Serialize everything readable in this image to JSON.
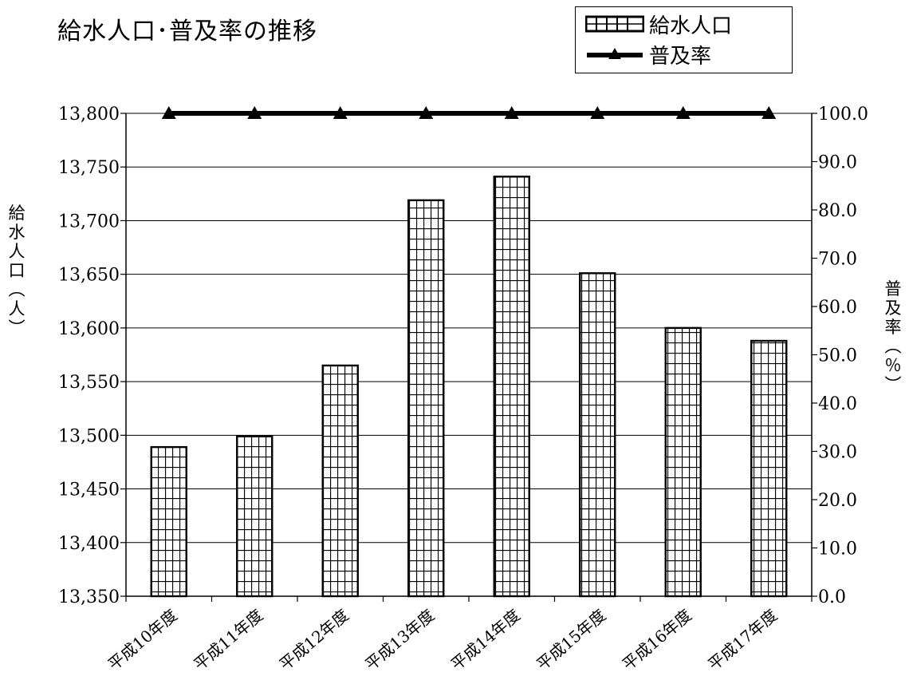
{
  "chart_data": {
    "type": "bar",
    "title": "給水人口･普及率の推移",
    "categories": [
      "平成10年度",
      "平成11年度",
      "平成12年度",
      "平成13年度",
      "平成14年度",
      "平成15年度",
      "平成16年度",
      "平成17年度"
    ],
    "series": [
      {
        "name": "給水人口",
        "type": "bar",
        "axis": "left",
        "values": [
          13489,
          13499,
          13565,
          13719,
          13741,
          13651,
          13600,
          13588
        ]
      },
      {
        "name": "普及率",
        "type": "line",
        "axis": "right",
        "marker": "triangle",
        "values": [
          100.0,
          100.0,
          100.0,
          100.0,
          100.0,
          100.0,
          100.0,
          100.0
        ]
      }
    ],
    "ylabel": "給水人口（人）",
    "ylabel_right": "普及率（％）",
    "ylim": [
      13350,
      13800
    ],
    "ylim_right": [
      0,
      100
    ],
    "yticks": [
      "13,350",
      "13,400",
      "13,450",
      "13,500",
      "13,550",
      "13,600",
      "13,650",
      "13,700",
      "13,750",
      "13,800"
    ],
    "yticks_right": [
      "0.0",
      "10.0",
      "20.0",
      "30.0",
      "40.0",
      "50.0",
      "60.0",
      "70.0",
      "80.0",
      "90.0",
      "100.0"
    ],
    "grid": true,
    "legend_position": "top-right"
  }
}
